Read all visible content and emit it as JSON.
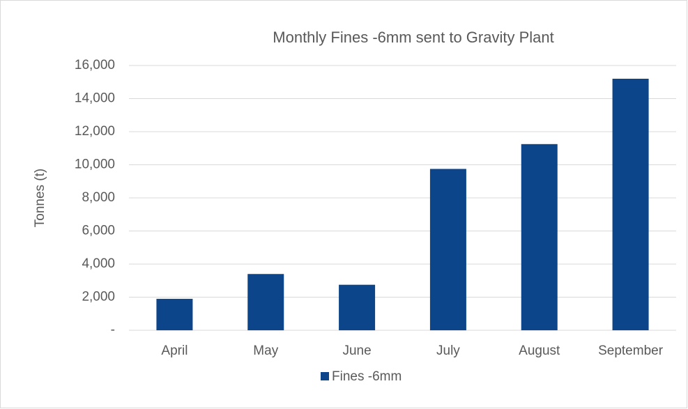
{
  "chart_data": {
    "type": "bar",
    "title": "Monthly Fines -6mm sent to Gravity Plant",
    "y_label": "Tonnes (t)",
    "categories": [
      "April",
      "May",
      "June",
      "July",
      "August",
      "September"
    ],
    "series": [
      {
        "name": "Fines -6mm",
        "color": "#0c4589",
        "values": [
          1900,
          3400,
          2750,
          9750,
          11250,
          15200
        ]
      }
    ],
    "ylim": [
      0,
      16000
    ],
    "yticks": [
      {
        "value": 0,
        "label": "-"
      },
      {
        "value": 2000,
        "label": "2,000"
      },
      {
        "value": 4000,
        "label": "4,000"
      },
      {
        "value": 6000,
        "label": "6,000"
      },
      {
        "value": 8000,
        "label": "8,000"
      },
      {
        "value": 10000,
        "label": "10,000"
      },
      {
        "value": 12000,
        "label": "12,000"
      },
      {
        "value": 14000,
        "label": "14,000"
      },
      {
        "value": 16000,
        "label": "16,000"
      }
    ],
    "grid": true,
    "legend": "bottom"
  }
}
